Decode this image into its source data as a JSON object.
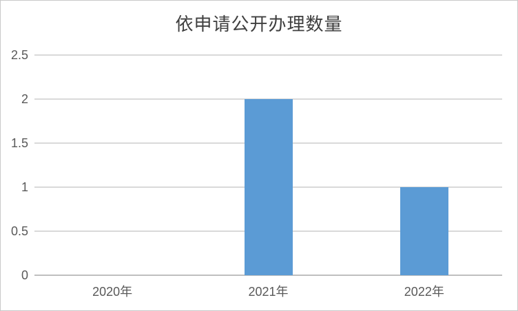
{
  "chart_data": {
    "type": "bar",
    "title": "依申请公开办理数量",
    "categories": [
      "2020年",
      "2021年",
      "2022年"
    ],
    "values": [
      0,
      2,
      1
    ],
    "xlabel": "",
    "ylabel": "",
    "ylim": [
      0,
      2.5
    ],
    "yticks": [
      0,
      0.5,
      1,
      1.5,
      2,
      2.5
    ],
    "ytick_labels": [
      "0",
      "0.5",
      "1",
      "1.5",
      "2",
      "2.5"
    ],
    "grid": "horizontal",
    "legend": "none",
    "colors": {
      "bar": "#5B9BD5",
      "gridline": "#D9D9D9",
      "axis_line": "#BFBFBF",
      "tick_text": "#595959",
      "title_text": "#3F3F3F",
      "background": "#FFFFFF",
      "frame_border": "#C9C9C9"
    }
  }
}
